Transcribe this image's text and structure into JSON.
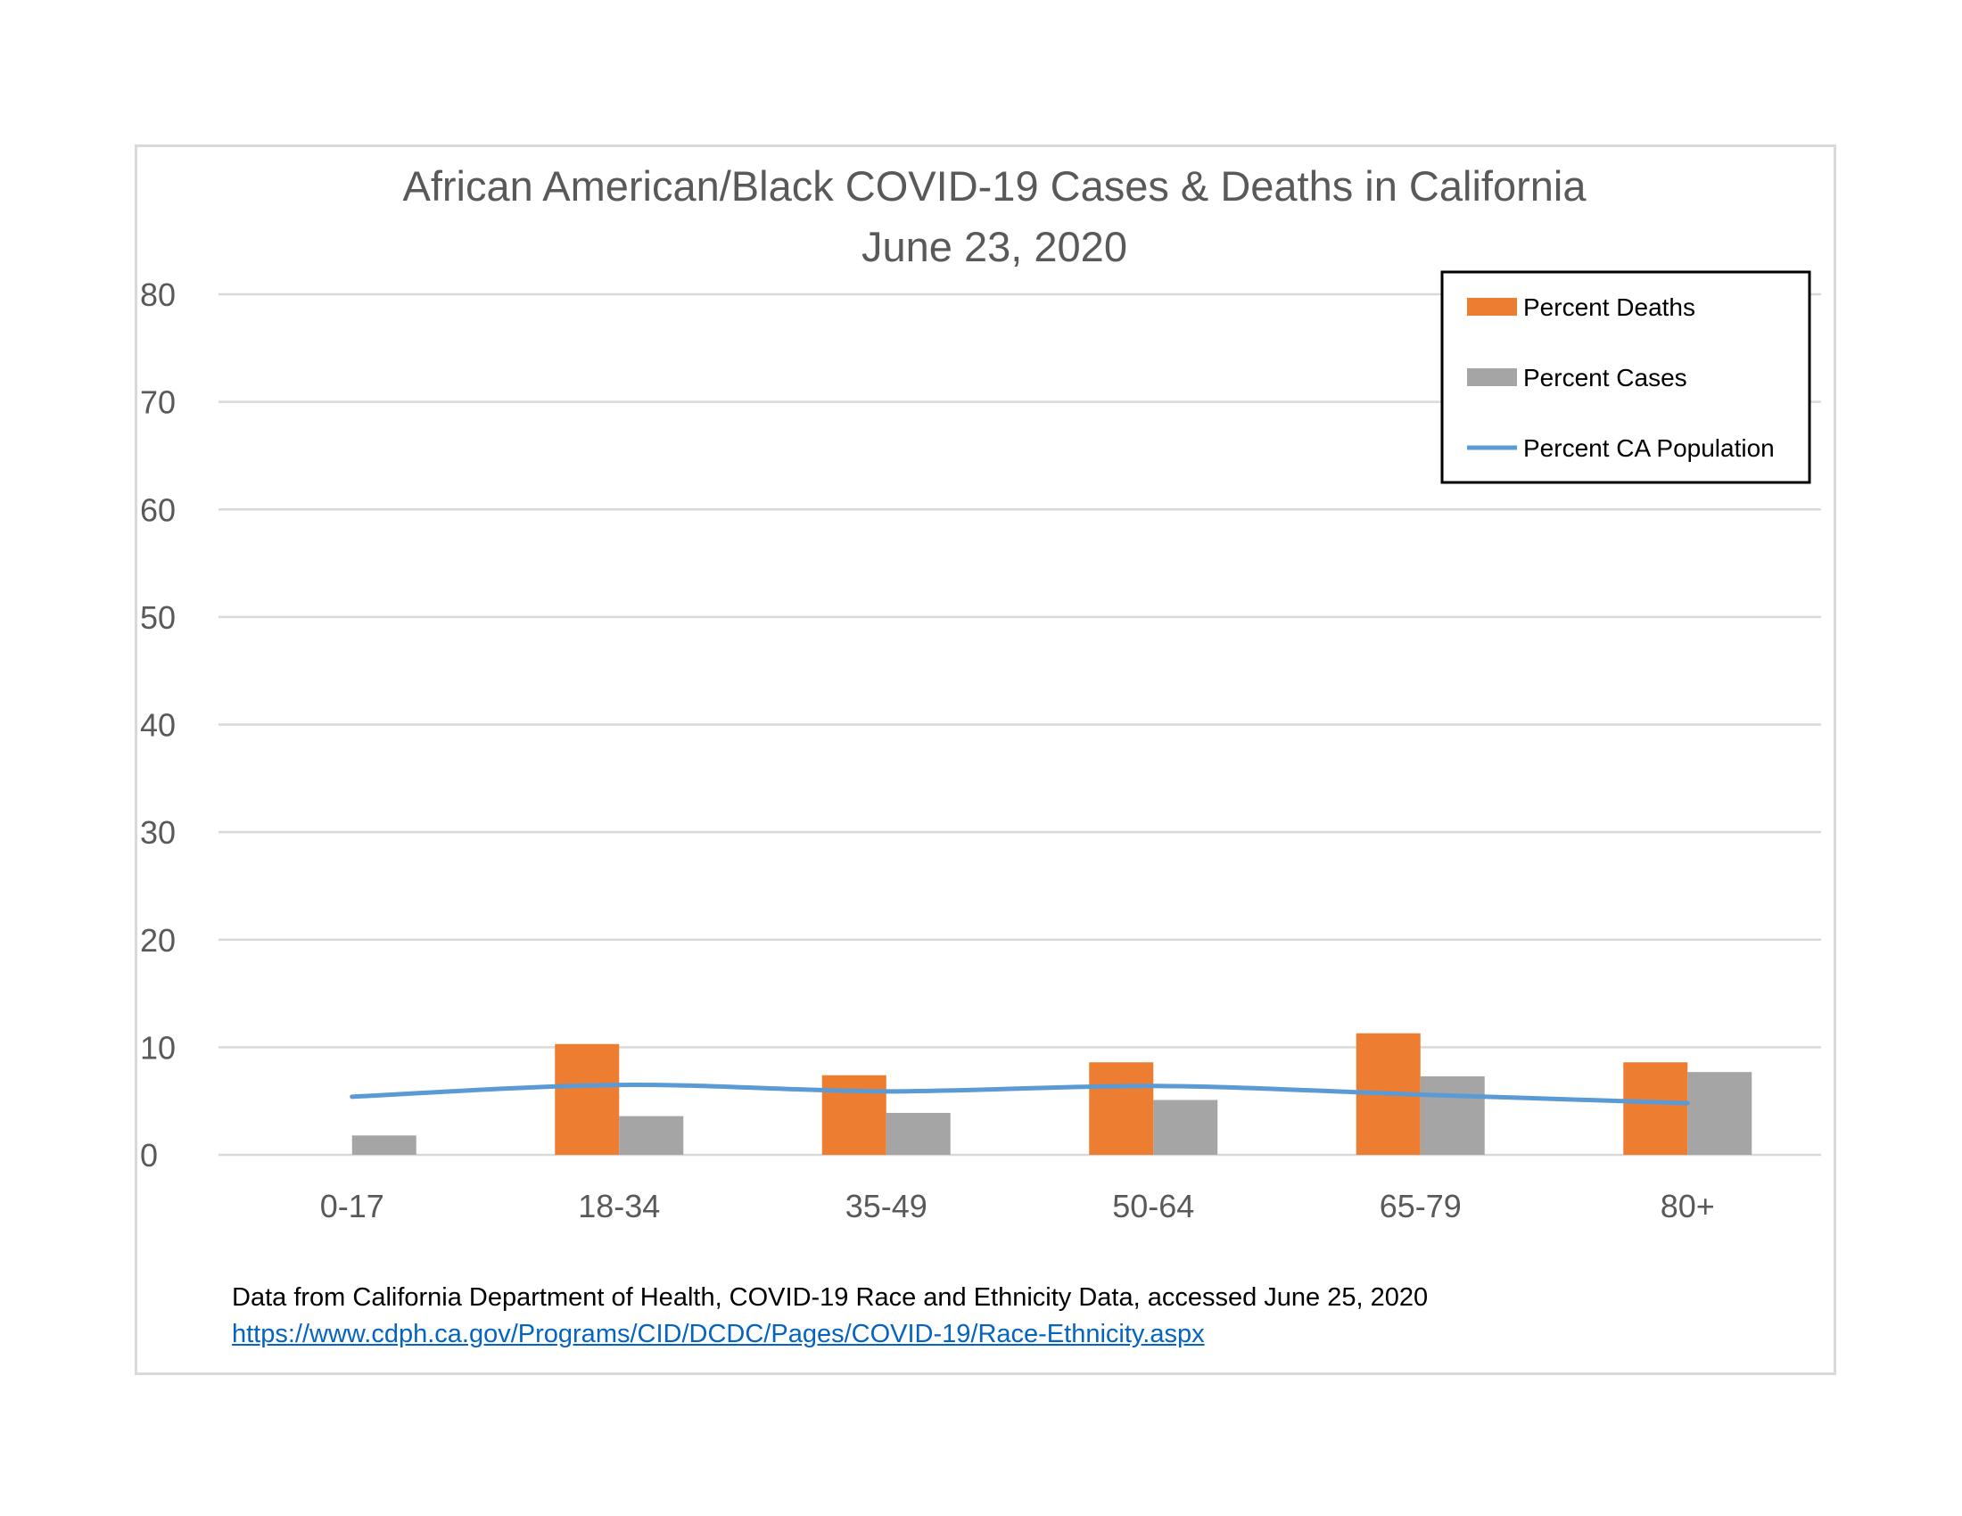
{
  "chart_data": {
    "type": "bar",
    "title": "African American/Black COVID-19 Cases & Deaths in California",
    "subtitle": "June 23, 2020",
    "categories": [
      "0-17",
      "18-34",
      "35-49",
      "50-64",
      "65-79",
      "80+"
    ],
    "series": [
      {
        "name": "Percent Deaths",
        "type": "bar",
        "color": "#ed7d31",
        "values": [
          0,
          10.3,
          7.4,
          8.6,
          11.3,
          8.6
        ]
      },
      {
        "name": "Percent Cases",
        "type": "bar",
        "color": "#a5a5a5",
        "values": [
          1.8,
          3.6,
          3.9,
          5.1,
          7.3,
          7.7
        ]
      },
      {
        "name": "Percent CA Population",
        "type": "line",
        "color": "#5b9bd5",
        "values": [
          5.4,
          6.5,
          5.9,
          6.4,
          5.6,
          4.8
        ]
      }
    ],
    "ylim": [
      0,
      80
    ],
    "yticks": [
      0,
      10,
      20,
      30,
      40,
      50,
      60,
      70,
      80
    ],
    "xlabel": "",
    "ylabel": "",
    "grid": true,
    "legend_position": "top-right"
  },
  "source": {
    "note": "Data from California Department of Health, COVID-19 Race and Ethnicity Data, accessed June 25, 2020",
    "url": "https://www.cdph.ca.gov/Programs/CID/DCDC/Pages/COVID-19/Race-Ethnicity.aspx"
  }
}
